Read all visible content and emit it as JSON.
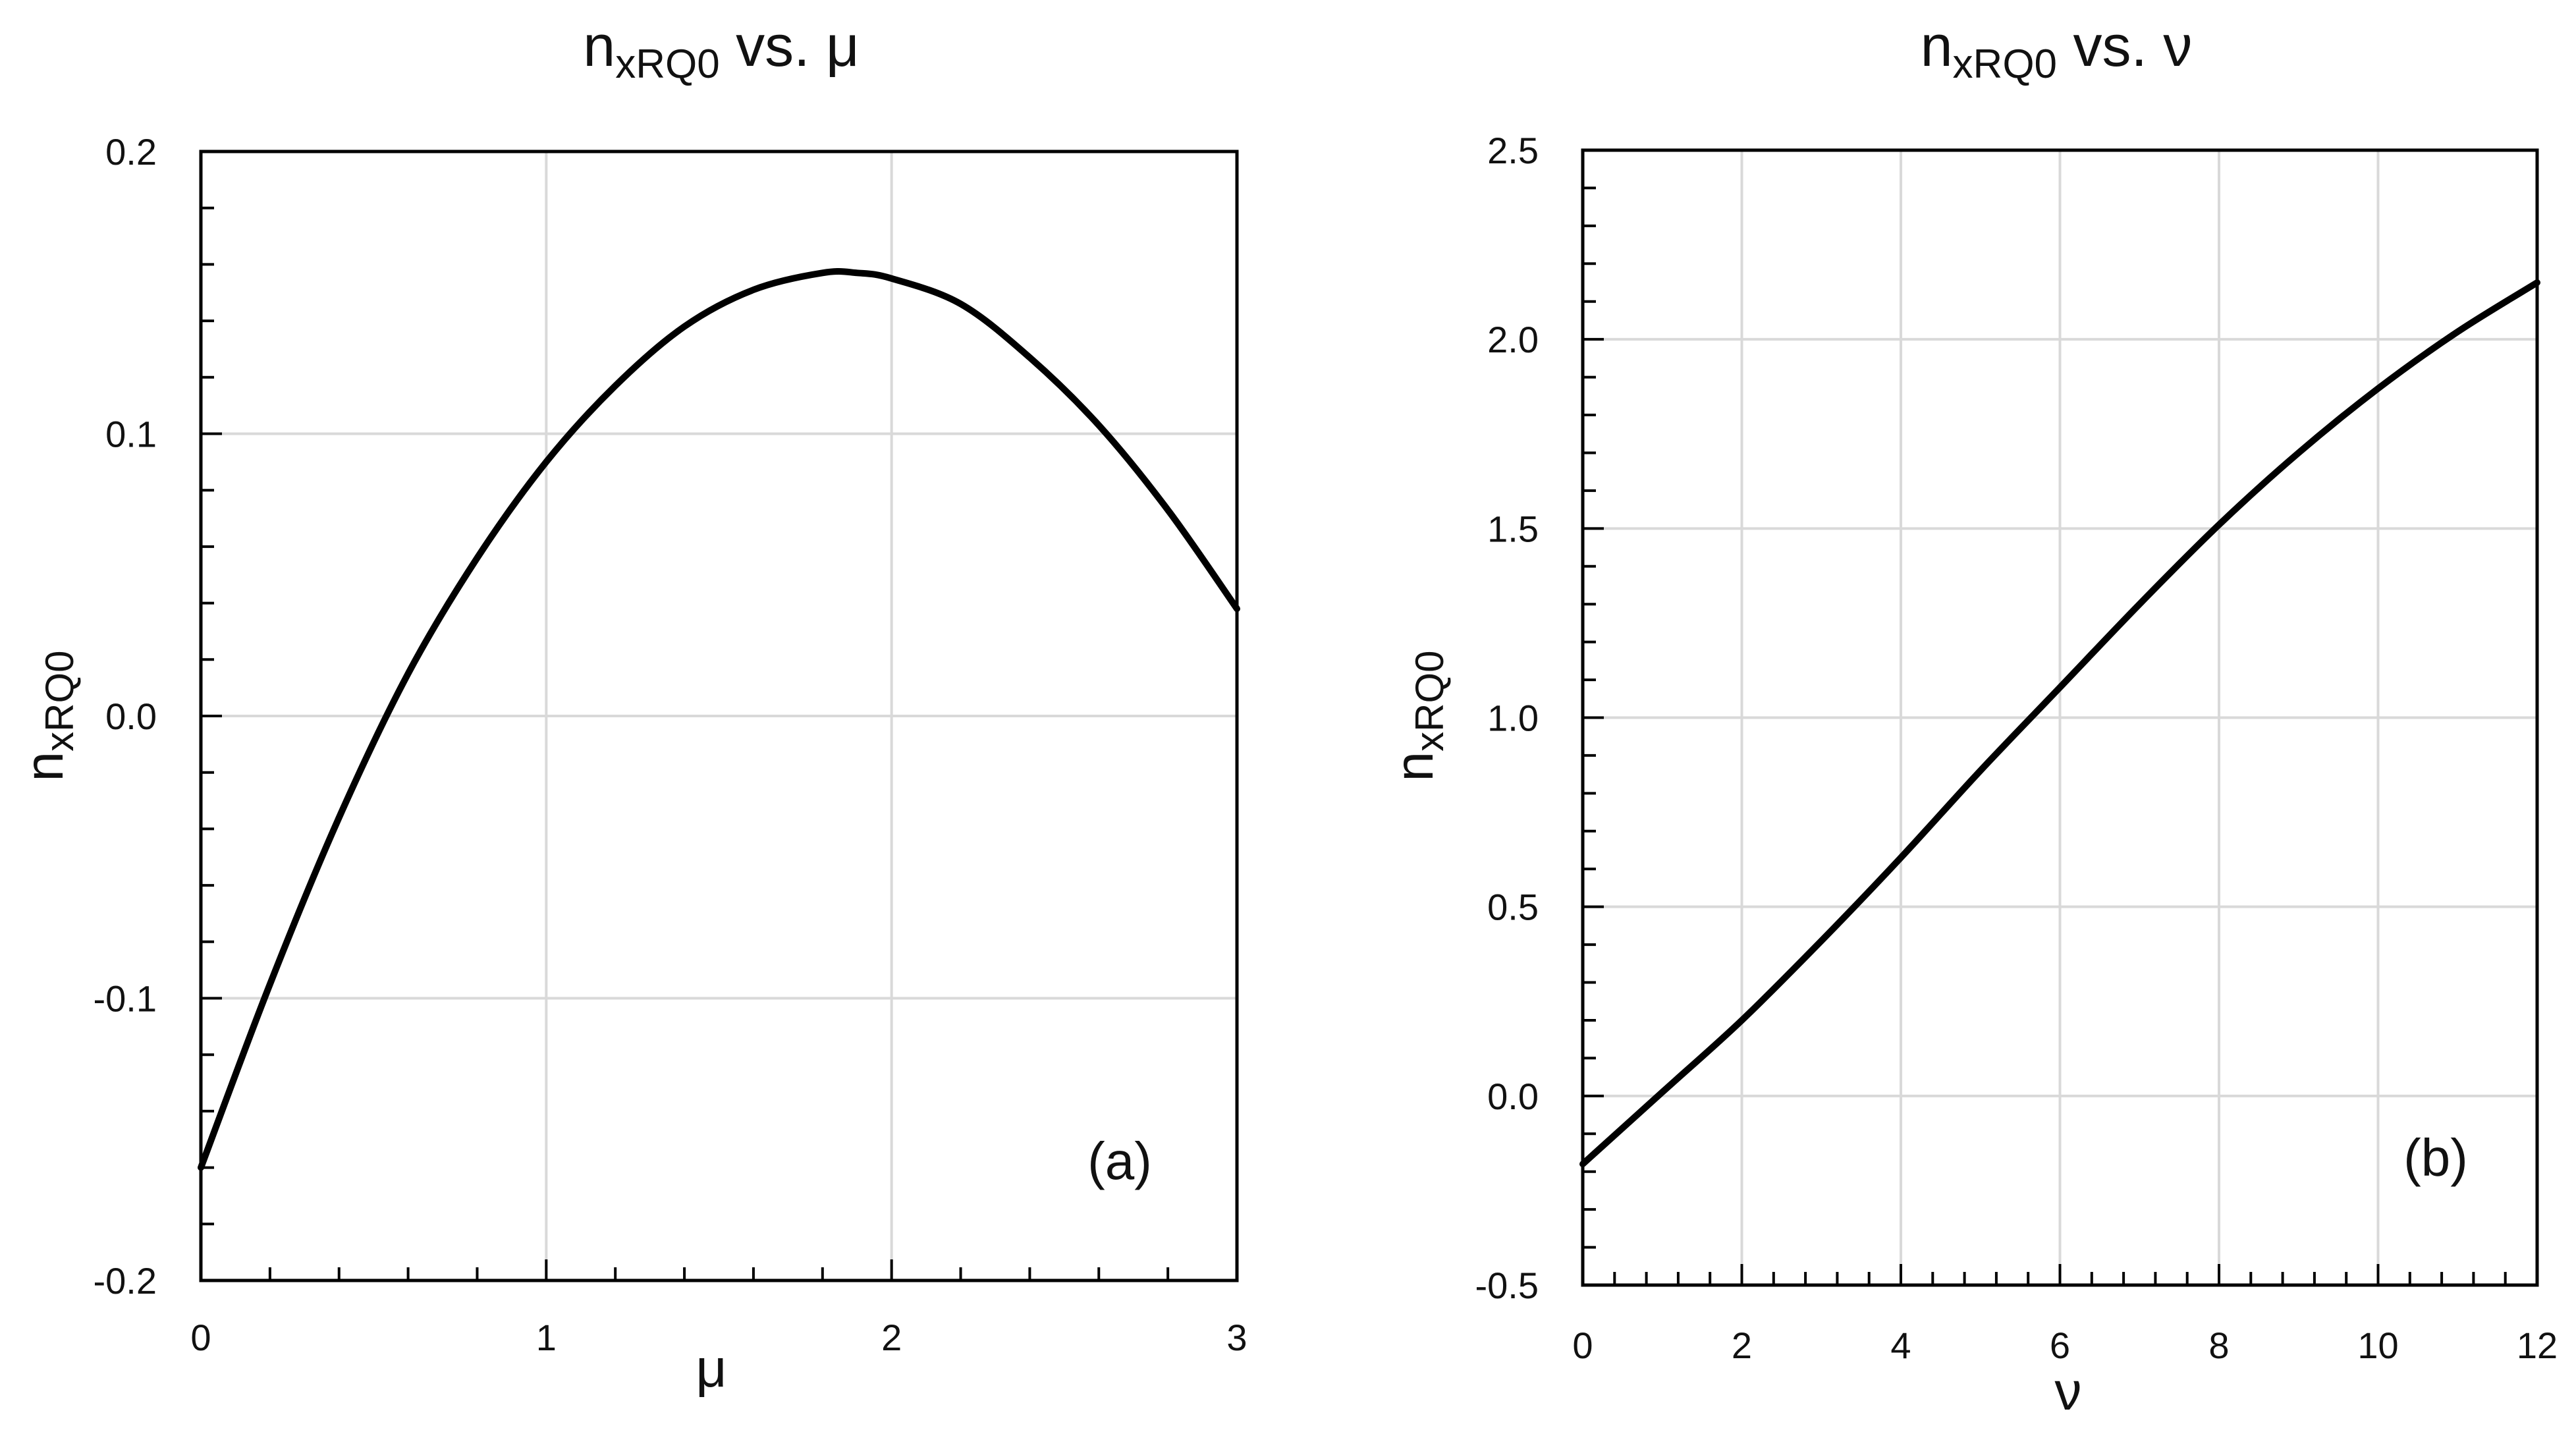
{
  "chart_data": [
    {
      "type": "line",
      "panel": "(a)",
      "title": {
        "main": "n",
        "sub": "xRQ0",
        "rest": " vs. μ"
      },
      "xlabel": "μ",
      "ylabel": {
        "main": "n",
        "sub": "xRQ0"
      },
      "xlim": [
        0,
        3
      ],
      "ylim": [
        -0.2,
        0.2
      ],
      "xticks": [
        0,
        1,
        2,
        3
      ],
      "xtick_labels": [
        "0",
        "1",
        "2",
        "3"
      ],
      "yticks": [
        -0.2,
        -0.1,
        0.0,
        0.1,
        0.2
      ],
      "ytick_labels": [
        "-0.2",
        "-0.1",
        "0.0",
        "0.1",
        "0.2"
      ],
      "x_minor_step": 0.2,
      "y_minor_step": 0.02,
      "grid": true,
      "series": [
        {
          "x": [
            0,
            0.2,
            0.4,
            0.6,
            0.8,
            1.0,
            1.2,
            1.4,
            1.6,
            1.8,
            1.9,
            2.0,
            2.2,
            2.4,
            2.6,
            2.8,
            3.0
          ],
          "y": [
            -0.16,
            -0.095,
            -0.036,
            0.015,
            0.056,
            0.09,
            0.117,
            0.138,
            0.151,
            0.157,
            0.157,
            0.155,
            0.146,
            0.127,
            0.103,
            0.073,
            0.038
          ]
        }
      ]
    },
    {
      "type": "line",
      "panel": "(b)",
      "title": {
        "main": "n",
        "sub": "xRQ0",
        "rest": " vs. ν"
      },
      "xlabel": "ν",
      "ylabel": {
        "main": "n",
        "sub": "xRQ0"
      },
      "xlim": [
        0,
        12
      ],
      "ylim": [
        -0.5,
        2.5
      ],
      "xticks": [
        0,
        2,
        4,
        6,
        8,
        10,
        12
      ],
      "xtick_labels": [
        "0",
        "2",
        "4",
        "6",
        "8",
        "10",
        "12"
      ],
      "yticks": [
        -0.5,
        0.0,
        0.5,
        1.0,
        1.5,
        2.0,
        2.5
      ],
      "ytick_labels": [
        "-0.5",
        "0.0",
        "0.5",
        "1.0",
        "1.5",
        "2.0",
        "2.5"
      ],
      "x_minor_step": 0.4,
      "y_minor_step": 0.1,
      "grid": true,
      "series": [
        {
          "x": [
            0,
            1,
            2,
            3,
            4,
            5,
            6,
            7,
            8,
            9,
            10,
            11,
            12
          ],
          "y": [
            -0.18,
            0.01,
            0.2,
            0.41,
            0.63,
            0.86,
            1.08,
            1.3,
            1.51,
            1.7,
            1.87,
            2.02,
            2.15
          ]
        }
      ]
    }
  ]
}
